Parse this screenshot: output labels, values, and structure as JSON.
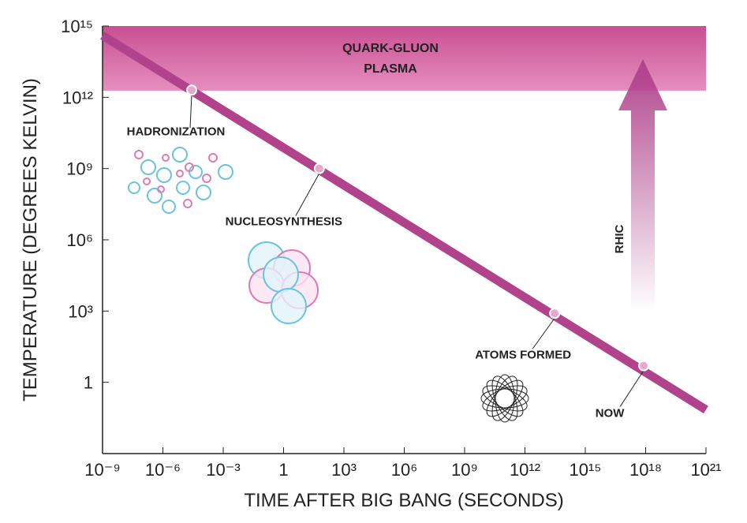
{
  "chart_data": {
    "type": "line",
    "x_label": "TIME AFTER BIG BANG (SECONDS)",
    "y_label": "TEMPERATURE (DEGREES KELVIN)",
    "xscale": "log",
    "yscale": "log",
    "xlim": [
      1e-09,
      1e+21
    ],
    "ylim": [
      0.001,
      1000000000000000.0
    ],
    "xticks": [
      {
        "value": 1e-09,
        "label": "10⁻⁹"
      },
      {
        "value": 1e-06,
        "label": "10⁻⁶"
      },
      {
        "value": 0.001,
        "label": "10⁻³"
      },
      1,
      {
        "value": 1000,
        "label": "10³"
      },
      {
        "value": 1000000.0,
        "label": "10⁶"
      },
      {
        "value": 1000000000.0,
        "label": "10⁹"
      },
      {
        "value": 1000000000000.0,
        "label": "10¹²"
      },
      {
        "value": 1000000000000000.0,
        "label": "10¹⁵"
      },
      {
        "value": 1e+18,
        "label": "10¹⁸"
      },
      {
        "value": 1e+21,
        "label": "10²¹"
      }
    ],
    "yticks": [
      1,
      {
        "value": 1000,
        "label": "10³"
      },
      {
        "value": 1000000.0,
        "label": "10⁶"
      },
      {
        "value": 1000000000.0,
        "label": "10⁹"
      },
      {
        "value": 1000000000000.0,
        "label": "10¹²"
      },
      {
        "value": 1000000000000000.0,
        "label": "10¹⁵"
      }
    ],
    "x": [
      1e-09,
      1e+21
    ],
    "series": [
      {
        "color": "#b0438c",
        "values": [
          400000000000000.0,
          0.07
        ]
      }
    ],
    "band": {
      "label": [
        "QUARK-GLUON",
        "PLASMA"
      ],
      "ylim": [
        1900000000000.0,
        1000000000000000.0
      ],
      "color": "#d86aa6"
    },
    "events": [
      {
        "label": "HADRONIZATION",
        "x": 2.7e-05,
        "y": 2000000000000.0
      },
      {
        "label": "NUCLEOSYNTHESIS",
        "x": 60,
        "y": 1000000000.0
      },
      {
        "label": "ATOMS FORMED",
        "x": 30000000000000.0,
        "y": 800
      },
      {
        "label": "NOW",
        "x": 8e+17,
        "y": 5
      }
    ],
    "arrow": {
      "label": "RHIC",
      "color": "#b0438c"
    }
  }
}
